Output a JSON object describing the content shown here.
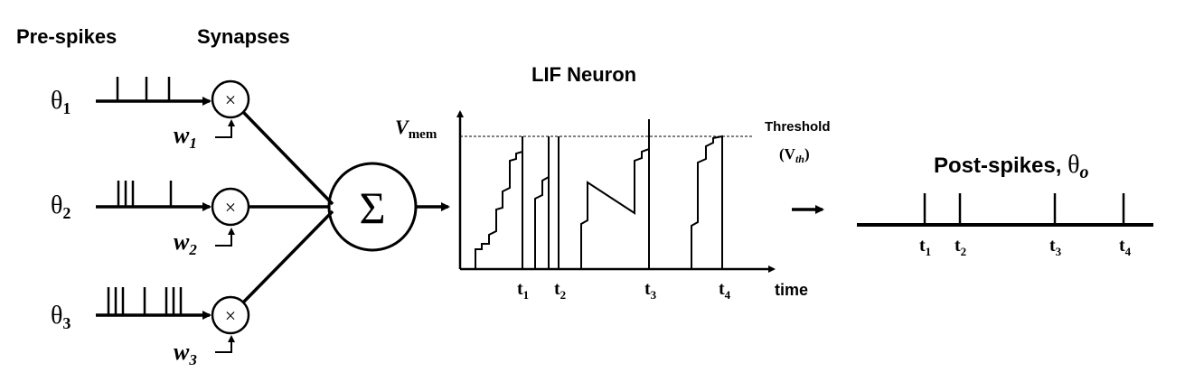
{
  "headers": {
    "pre_spikes": "Pre-spikes",
    "synapses": "Synapses",
    "lif_neuron": "LIF Neuron",
    "post_spikes": "Post-spikes, ",
    "post_theta": "θ",
    "post_theta_sub": "o"
  },
  "inputs": [
    {
      "theta": "θ",
      "sub": "1",
      "w": "w",
      "wsub": "1"
    },
    {
      "theta": "θ",
      "sub": "2",
      "w": "w",
      "wsub": "2"
    },
    {
      "theta": "θ",
      "sub": "3",
      "w": "w",
      "wsub": "3"
    }
  ],
  "multiply_symbol": "×",
  "sum_symbol": "Σ",
  "plot": {
    "y_label": "V",
    "y_label_sub": "mem",
    "x_label": "time",
    "threshold_label": "Threshold",
    "threshold_symbol": "(V",
    "threshold_symbol_sub": "th",
    "threshold_symbol_close": ")",
    "spike_times": [
      {
        "t": "t",
        "sub": "1"
      },
      {
        "t": "t",
        "sub": "2"
      },
      {
        "t": "t",
        "sub": "3"
      },
      {
        "t": "t",
        "sub": "4"
      }
    ]
  },
  "output_times": [
    {
      "t": "t",
      "sub": "1"
    },
    {
      "t": "t",
      "sub": "2"
    },
    {
      "t": "t",
      "sub": "3"
    },
    {
      "t": "t",
      "sub": "4"
    }
  ]
}
